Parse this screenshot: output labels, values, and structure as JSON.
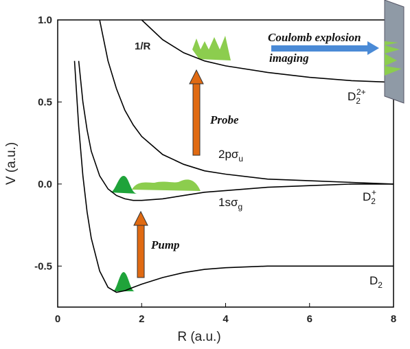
{
  "chart_data": {
    "type": "line",
    "xlabel": "R (a.u.)",
    "ylabel": "V (a.u.)",
    "xlim": [
      0,
      8
    ],
    "xticks": [
      0,
      2,
      4,
      6,
      8
    ],
    "ylim": [
      -0.75,
      1.0
    ],
    "yticks": [
      {
        "value": -0.5,
        "label": "-0.5"
      },
      {
        "value": 0,
        "label": "0.0"
      },
      0.5,
      {
        "value": 1.0,
        "label": "1.0"
      }
    ],
    "x": [
      0.4,
      0.5,
      0.6,
      0.7,
      0.8,
      1.0,
      1.2,
      1.4,
      1.6,
      1.8,
      2.0,
      2.5,
      3,
      3.5,
      4,
      5,
      6,
      7,
      8
    ],
    "series": [
      {
        "color": "#000000",
        "label": {
          "text": "D",
          "sub": "2"
        },
        "values": [
          0.75,
          0.35,
          0.05,
          -0.17,
          -0.33,
          -0.53,
          -0.63,
          -0.66,
          -0.65,
          -0.63,
          -0.61,
          -0.57,
          -0.54,
          -0.52,
          -0.51,
          -0.5,
          -0.5,
          -0.5,
          -0.5
        ]
      },
      {
        "color": "#000000",
        "label": {
          "text": "D",
          "sub": "2",
          "sup": "+"
        },
        "label2": {
          "text": "1sσ",
          "sub": "g"
        },
        "values": [
          null,
          0.75,
          0.5,
          0.33,
          0.2,
          0.05,
          -0.03,
          -0.07,
          -0.09,
          -0.1,
          -0.1,
          -0.09,
          -0.07,
          -0.05,
          -0.04,
          -0.02,
          -0.01,
          0,
          0
        ]
      },
      {
        "color": "#000000",
        "label": {
          "text": "2pσ",
          "sub": "u"
        },
        "values": [
          null,
          null,
          null,
          null,
          null,
          1.0,
          0.75,
          0.58,
          0.45,
          0.36,
          0.29,
          0.18,
          0.12,
          0.08,
          0.06,
          0.03,
          0.02,
          0.01,
          0
        ]
      },
      {
        "color": "#000000",
        "label": {
          "text": "D",
          "sub": "2",
          "sup": "2+"
        },
        "label2": {
          "text": "1/R"
        },
        "values": [
          null,
          null,
          null,
          null,
          null,
          null,
          null,
          null,
          null,
          null,
          1.0,
          0.88,
          0.8,
          0.75,
          0.72,
          0.68,
          0.65,
          0.63,
          0.62
        ]
      }
    ],
    "annotations": {
      "probe": "Probe",
      "pump": "Pump",
      "imaging": [
        "Coulomb explosion",
        "imaging"
      ]
    }
  }
}
